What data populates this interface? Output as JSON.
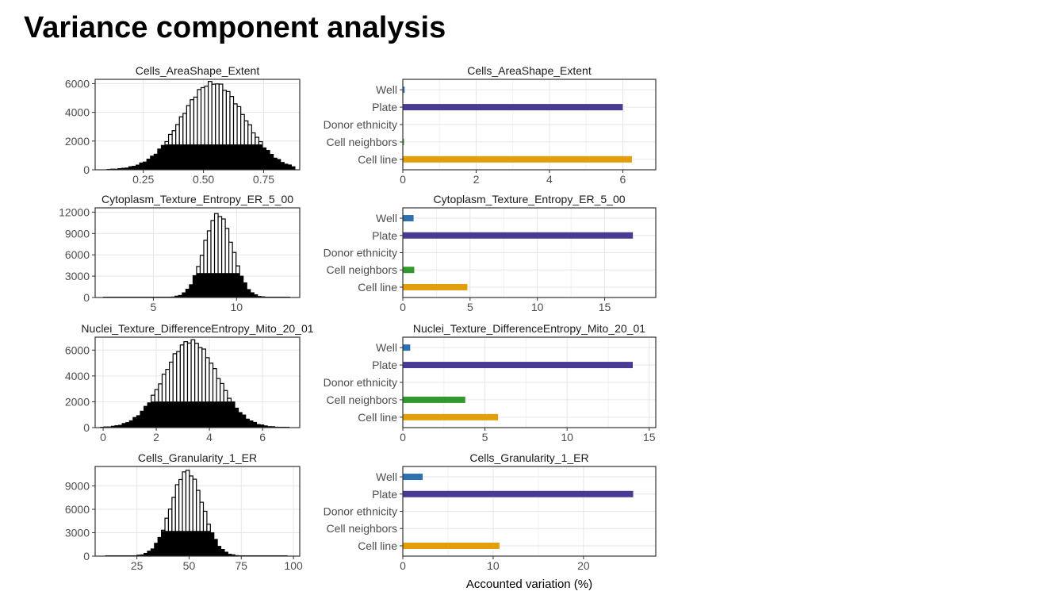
{
  "slide": {
    "title": "Variance component analysis"
  },
  "chart_data": [
    {
      "type": "histogram",
      "title": "Cells_AreaShape_Extent",
      "x_ticks": [
        0.25,
        0.5,
        0.75
      ],
      "x_tick_labels": [
        "0.25",
        "0.50",
        "0.75"
      ],
      "y_ticks": [
        0,
        2000,
        4000,
        6000
      ],
      "y_tick_labels": [
        "0",
        "2000",
        "4000",
        "6000"
      ],
      "xlim": [
        0.05,
        0.9
      ],
      "ylim": [
        0,
        6300
      ],
      "bins": {
        "start": 0.1,
        "end": 0.88,
        "count": 52,
        "center": 0.54,
        "sd": 0.13,
        "peak": 6050,
        "cap": 1750,
        "jitter": 130
      }
    },
    {
      "type": "histogram",
      "title": "Cytoplasm_Texture_Entropy_ER_5_00",
      "x_ticks": [
        5,
        10
      ],
      "x_tick_labels": [
        "5",
        "10"
      ],
      "y_ticks": [
        0,
        3000,
        6000,
        9000,
        12000
      ],
      "y_tick_labels": [
        "0",
        "3000",
        "6000",
        "9000",
        "12000"
      ],
      "xlim": [
        1.5,
        13.8
      ],
      "ylim": [
        0,
        12600
      ],
      "bins": {
        "start": 2.0,
        "end": 13.2,
        "count": 52,
        "center": 8.9,
        "sd": 0.85,
        "peak": 11700,
        "cap": 3400,
        "jitter": 250
      }
    },
    {
      "type": "histogram",
      "title": "Nuclei_Texture_DifferenceEntropy_Mito_20_01",
      "x_ticks": [
        0,
        2,
        4,
        6
      ],
      "x_tick_labels": [
        "0",
        "2",
        "4",
        "6"
      ],
      "y_ticks": [
        0,
        2000,
        4000,
        6000
      ],
      "y_tick_labels": [
        "0",
        "2000",
        "4000",
        "6000"
      ],
      "xlim": [
        -0.3,
        7.4
      ],
      "ylim": [
        0,
        7000
      ],
      "bins": {
        "start": -0.1,
        "end": 7.0,
        "count": 52,
        "center": 3.3,
        "sd": 1.0,
        "peak": 6700,
        "cap": 2000,
        "jitter": 150
      }
    },
    {
      "type": "histogram",
      "title": "Cells_Granularity_1_ER",
      "x_ticks": [
        25,
        50,
        75,
        100
      ],
      "x_tick_labels": [
        "25",
        "50",
        "75",
        "100"
      ],
      "y_ticks": [
        0,
        3000,
        6000,
        9000
      ],
      "y_tick_labels": [
        "0",
        "3000",
        "6000",
        "9000"
      ],
      "xlim": [
        5,
        103
      ],
      "ylim": [
        0,
        11500
      ],
      "bins": {
        "start": 10,
        "end": 97,
        "count": 52,
        "center": 49,
        "sd": 7.5,
        "peak": 10900,
        "cap": 3200,
        "jitter": 250
      }
    },
    {
      "type": "bar",
      "orientation": "horizontal",
      "title": "Cells_AreaShape_Extent",
      "categories": [
        "Well",
        "Plate",
        "Donor ethnicity",
        "Cell neighbors",
        "Cell line"
      ],
      "values": [
        0.05,
        6.0,
        0.0,
        0.03,
        6.25
      ],
      "x_ticks": [
        0,
        2,
        4,
        6
      ],
      "x_tick_labels": [
        "0",
        "2",
        "4",
        "6"
      ],
      "xlim": [
        0,
        6.9
      ]
    },
    {
      "type": "bar",
      "orientation": "horizontal",
      "title": "Cytoplasm_Texture_Entropy_ER_5_00",
      "categories": [
        "Well",
        "Plate",
        "Donor ethnicity",
        "Cell neighbors",
        "Cell line"
      ],
      "values": [
        0.8,
        17.1,
        0.0,
        0.85,
        4.8
      ],
      "x_ticks": [
        0,
        5,
        10,
        15
      ],
      "x_tick_labels": [
        "0",
        "5",
        "10",
        "15"
      ],
      "xlim": [
        0,
        18.8
      ]
    },
    {
      "type": "bar",
      "orientation": "horizontal",
      "title": "Nuclei_Texture_DifferenceEntropy_Mito_20_01",
      "categories": [
        "Well",
        "Plate",
        "Donor ethnicity",
        "Cell neighbors",
        "Cell line"
      ],
      "values": [
        0.45,
        14.0,
        0.0,
        3.8,
        5.8
      ],
      "x_ticks": [
        0,
        5,
        10,
        15
      ],
      "x_tick_labels": [
        "0",
        "5",
        "10",
        "15"
      ],
      "xlim": [
        0,
        15.4
      ]
    },
    {
      "type": "bar",
      "orientation": "horizontal",
      "title": "Cells_Granularity_1_ER",
      "categories": [
        "Well",
        "Plate",
        "Donor ethnicity",
        "Cell neighbors",
        "Cell line"
      ],
      "values": [
        2.2,
        25.5,
        0.0,
        0.0,
        10.7
      ],
      "x_ticks": [
        0,
        10,
        20
      ],
      "x_tick_labels": [
        "0",
        "10",
        "20"
      ],
      "xlim": [
        0,
        28.0
      ],
      "xlabel": "Accounted variation (%)"
    }
  ],
  "colors": {
    "Well": "#2d72b0",
    "Plate": "#4a3a94",
    "Donor ethnicity": "#7f7f7f",
    "Cell neighbors": "#33992f",
    "Cell line": "#e39f0a",
    "grid": "#e6e6e6",
    "panel_border": "#333333",
    "text": "#4d4d4d"
  }
}
